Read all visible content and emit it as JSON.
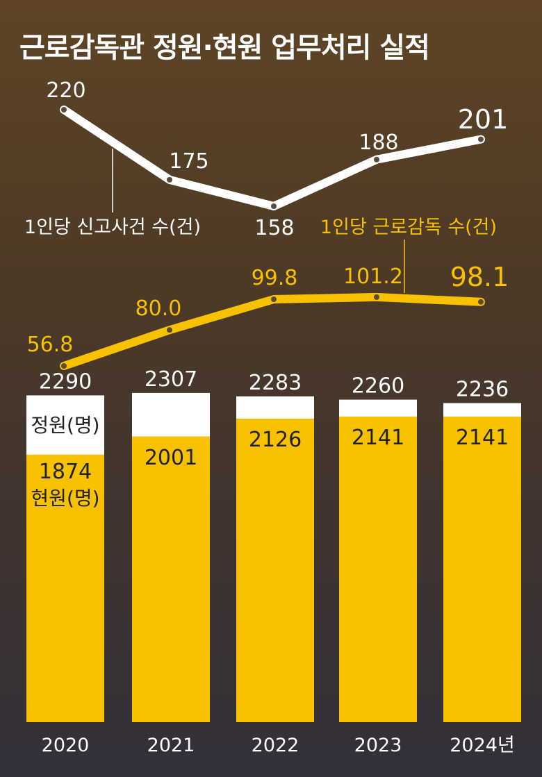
{
  "title": "근로감독관 정원·현원 업무처리 실적",
  "chart_data": {
    "type": "bar",
    "categories": [
      "2020",
      "2021",
      "2022",
      "2023",
      "2024년"
    ],
    "bar_series": [
      {
        "name": "정원(명)",
        "values": [
          2290,
          2307,
          2283,
          2260,
          2236
        ],
        "color": "#ffffff"
      },
      {
        "name": "현원(명)",
        "values": [
          1874,
          2001,
          2126,
          2141,
          2141
        ],
        "color": "#f8c200"
      }
    ],
    "line_series": [
      {
        "name": "1인당 신고사건 수(건)",
        "values": [
          220,
          175,
          158,
          188,
          201
        ],
        "labels": [
          "220",
          "175",
          "158",
          "188",
          "201"
        ],
        "color": "#ffffff"
      },
      {
        "name": "1인당 근로감독 수(건)",
        "values": [
          56.8,
          80.0,
          99.8,
          101.2,
          98.1
        ],
        "labels": [
          "56.8",
          "80.0",
          "99.8",
          "101.2",
          "98.1"
        ],
        "color": "#f8c200"
      }
    ],
    "colors": {
      "white": "#ffffff",
      "yellow": "#f8c200",
      "text_dark": "#222222"
    }
  }
}
